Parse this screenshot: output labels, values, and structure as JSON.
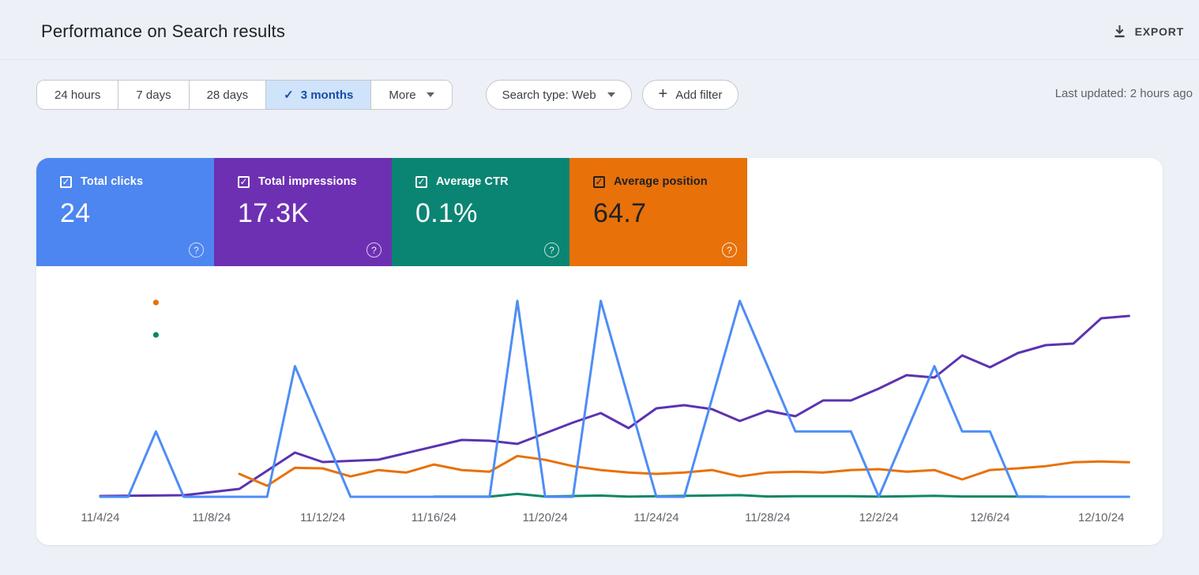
{
  "header": {
    "title": "Performance on Search results",
    "export_label": "EXPORT"
  },
  "toolbar": {
    "date_ranges": [
      {
        "label": "24 hours",
        "selected": false
      },
      {
        "label": "7 days",
        "selected": false
      },
      {
        "label": "28 days",
        "selected": false
      },
      {
        "label": "3 months",
        "selected": true
      }
    ],
    "more_label": "More",
    "search_type_label": "Search type: Web",
    "add_filter_label": "Add filter",
    "last_updated": "Last updated: 2 hours ago"
  },
  "metrics": [
    {
      "id": "clicks",
      "label": "Total clicks",
      "value": "24",
      "checked": true,
      "bg": "#4d86f0",
      "fg": "#ffffff"
    },
    {
      "id": "impressions",
      "label": "Total impressions",
      "value": "17.3K",
      "checked": true,
      "bg": "#6e30b2",
      "fg": "#ffffff"
    },
    {
      "id": "ctr",
      "label": "Average CTR",
      "value": "0.1%",
      "checked": true,
      "bg": "#0b8573",
      "fg": "#ffffff"
    },
    {
      "id": "position",
      "label": "Average position",
      "value": "64.7",
      "checked": true,
      "bg": "#e8710a",
      "fg": "#202124"
    }
  ],
  "chart_data": {
    "type": "line",
    "x_unit": "days since 11/4/24",
    "x_range": [
      0,
      37
    ],
    "x_ticks": [
      {
        "d": 0,
        "label": "11/4/24"
      },
      {
        "d": 4,
        "label": "11/8/24"
      },
      {
        "d": 8,
        "label": "11/12/24"
      },
      {
        "d": 12,
        "label": "11/16/24"
      },
      {
        "d": 16,
        "label": "11/20/24"
      },
      {
        "d": 20,
        "label": "11/24/24"
      },
      {
        "d": 24,
        "label": "11/28/24"
      },
      {
        "d": 28,
        "label": "12/2/24"
      },
      {
        "d": 32,
        "label": "12/6/24"
      },
      {
        "d": 36,
        "label": "12/10/24"
      }
    ],
    "series": [
      {
        "id": "impressions",
        "name": "Total impressions",
        "color": "#5c33b0",
        "unit": "impressions per day",
        "points": [
          [
            0,
            5
          ],
          [
            3,
            10
          ],
          [
            5,
            50
          ],
          [
            7,
            280
          ],
          [
            8,
            220
          ],
          [
            10,
            235
          ],
          [
            13,
            360
          ],
          [
            14,
            355
          ],
          [
            15,
            335
          ],
          [
            17,
            470
          ],
          [
            18,
            530
          ],
          [
            19,
            435
          ],
          [
            20,
            560
          ],
          [
            21,
            580
          ],
          [
            22,
            555
          ],
          [
            23,
            480
          ],
          [
            24,
            545
          ],
          [
            25,
            510
          ],
          [
            26,
            610
          ],
          [
            27,
            610
          ],
          [
            28,
            685
          ],
          [
            29,
            770
          ],
          [
            30,
            755
          ],
          [
            31,
            895
          ],
          [
            32,
            820
          ],
          [
            33,
            910
          ],
          [
            34,
            960
          ],
          [
            35,
            970
          ],
          [
            36,
            1130
          ],
          [
            37,
            1145
          ]
        ]
      },
      {
        "id": "position",
        "name": "Average position",
        "color": "#e8710a",
        "unit": "position (inverted axis, lower is higher)",
        "points": [
          [
            5,
            66
          ],
          [
            6,
            70.3
          ],
          [
            7,
            63.8
          ],
          [
            8,
            64
          ],
          [
            9,
            66.9
          ],
          [
            10,
            64.6
          ],
          [
            11,
            65.5
          ],
          [
            12,
            62.6
          ],
          [
            13,
            64.6
          ],
          [
            14,
            65.2
          ],
          [
            15,
            59.5
          ],
          [
            16,
            60.9
          ],
          [
            17,
            63.2
          ],
          [
            18,
            64.6
          ],
          [
            19,
            65.5
          ],
          [
            20,
            66
          ],
          [
            21,
            65.5
          ],
          [
            22,
            64.6
          ],
          [
            23,
            66.9
          ],
          [
            24,
            65.5
          ],
          [
            25,
            65.2
          ],
          [
            26,
            65.5
          ],
          [
            27,
            64.6
          ],
          [
            28,
            64.3
          ],
          [
            29,
            65.2
          ],
          [
            30,
            64.6
          ],
          [
            31,
            68
          ],
          [
            32,
            64.6
          ],
          [
            33,
            64
          ],
          [
            34,
            63.2
          ],
          [
            35,
            61.8
          ],
          [
            36,
            61.5
          ],
          [
            37,
            61.8
          ]
        ]
      },
      {
        "id": "ctr",
        "name": "Average CTR",
        "color": "#0e8667",
        "unit": "%",
        "points": [
          [
            12,
            0.05
          ],
          [
            14,
            0.05
          ],
          [
            15,
            0.9
          ],
          [
            16,
            0.1
          ],
          [
            18,
            0.4
          ],
          [
            19,
            0.05
          ],
          [
            23,
            0.5
          ],
          [
            24,
            0.1
          ],
          [
            25,
            0.2
          ],
          [
            27,
            0.2
          ],
          [
            28,
            0.05
          ],
          [
            30,
            0.3
          ],
          [
            31,
            0.1
          ],
          [
            32,
            0.1
          ],
          [
            34,
            0.05
          ]
        ]
      },
      {
        "id": "clicks",
        "name": "Total clicks",
        "color": "#4e8df5",
        "unit": "clicks per day",
        "points": [
          [
            0,
            0
          ],
          [
            1,
            0
          ],
          [
            2,
            1
          ],
          [
            3,
            0
          ],
          [
            6,
            0
          ],
          [
            7,
            2
          ],
          [
            8,
            1
          ],
          [
            9,
            0
          ],
          [
            14,
            0
          ],
          [
            15,
            3
          ],
          [
            16,
            0
          ],
          [
            17,
            0
          ],
          [
            18,
            3
          ],
          [
            20,
            0
          ],
          [
            21,
            0
          ],
          [
            23,
            3
          ],
          [
            25,
            1
          ],
          [
            27,
            1
          ],
          [
            28,
            0
          ],
          [
            30,
            2
          ],
          [
            31,
            1
          ],
          [
            32,
            1
          ],
          [
            33,
            0
          ],
          [
            37,
            0
          ]
        ]
      }
    ],
    "isolated_points": [
      {
        "series": "position",
        "d": 2,
        "v": 4
      },
      {
        "series": "ctr",
        "d": 2,
        "v": 50
      }
    ]
  }
}
